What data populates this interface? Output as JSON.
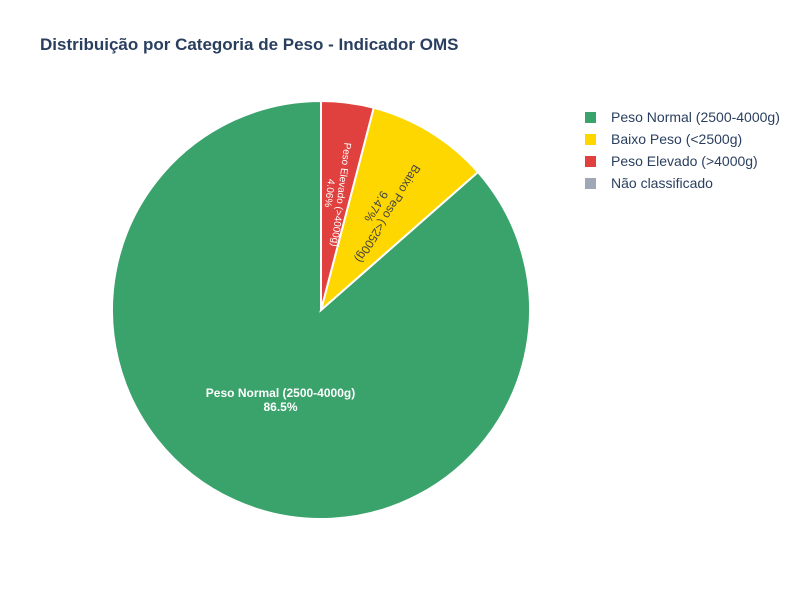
{
  "chart_data": {
    "type": "pie",
    "title": "Distribuição por Categoria de Peso - Indicador OMS",
    "categories": [
      "Peso Normal (2500-4000g)",
      "Baixo Peso (<2500g)",
      "Peso Elevado (>4000g)",
      "Não classificado"
    ],
    "values": [
      86.5,
      9.47,
      4.06,
      0
    ],
    "percent_labels": [
      "86.5%",
      "9.47%",
      "4.06%",
      ""
    ],
    "colors": [
      "#3aa26b",
      "#ffd700",
      "#e0413e",
      "#a0a8b8"
    ],
    "legend_position": "top-right",
    "sort": "counterclockwise from top"
  },
  "legend": {
    "items": [
      {
        "label": "Peso Normal (2500-4000g)",
        "color": "#3aa26b"
      },
      {
        "label": "Baixo Peso (<2500g)",
        "color": "#ffd700"
      },
      {
        "label": "Peso Elevado (>4000g)",
        "color": "#e0413e"
      },
      {
        "label": "Não classificado",
        "color": "#a0a8b8"
      }
    ]
  }
}
